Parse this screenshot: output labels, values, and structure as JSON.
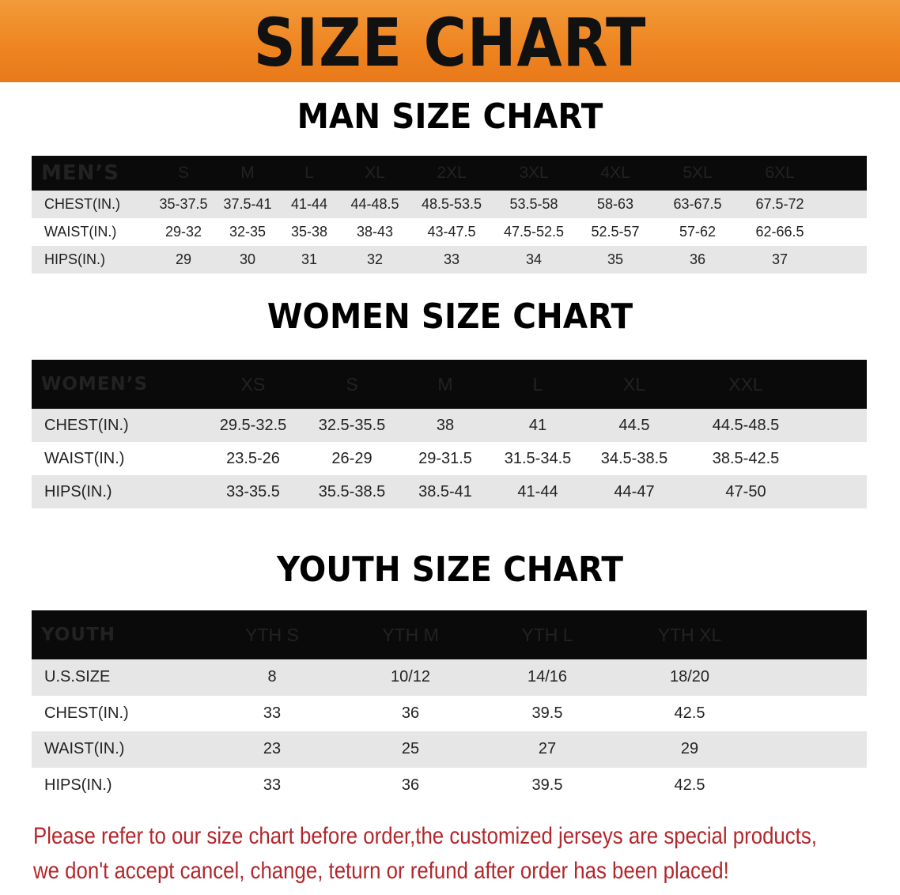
{
  "banner_title": "SIZE CHART",
  "colors": {
    "banner": "#ee8420",
    "header_bg": "#0a0a0a",
    "alt_row": "#e6e6e6",
    "note_text": "#b3262b"
  },
  "men": {
    "title": "MAN SIZE CHART",
    "header": [
      "MEN’S",
      "S",
      "M",
      "L",
      "XL",
      "2XL",
      "3XL",
      "4XL",
      "5XL",
      "6XL"
    ],
    "rows": [
      [
        "CHEST(IN.)",
        "35-37.5",
        "37.5-41",
        "41-44",
        "44-48.5",
        "48.5-53.5",
        "53.5-58",
        "58-63",
        "63-67.5",
        "67.5-72"
      ],
      [
        "WAIST(IN.)",
        "29-32",
        "32-35",
        "35-38",
        "38-43",
        "43-47.5",
        "47.5-52.5",
        "52.5-57",
        "57-62",
        "62-66.5"
      ],
      [
        "HIPS(IN.)",
        "29",
        "30",
        "31",
        "32",
        "33",
        "34",
        "35",
        "36",
        "37"
      ]
    ]
  },
  "women": {
    "title": "WOMEN SIZE CHART",
    "header": [
      "WOMEN’S",
      "XS",
      "S",
      "M",
      "L",
      "XL",
      "XXL"
    ],
    "rows": [
      [
        "CHEST(IN.)",
        "29.5-32.5",
        "32.5-35.5",
        "38",
        "41",
        "44.5",
        "44.5-48.5"
      ],
      [
        "WAIST(IN.)",
        "23.5-26",
        "26-29",
        "29-31.5",
        "31.5-34.5",
        "34.5-38.5",
        "38.5-42.5"
      ],
      [
        "HIPS(IN.)",
        "33-35.5",
        "35.5-38.5",
        "38.5-41",
        "41-44",
        "44-47",
        "47-50"
      ]
    ]
  },
  "youth": {
    "title": "YOUTH SIZE CHART",
    "header": [
      "YOUTH",
      "YTH S",
      "YTH M",
      "YTH L",
      "YTH XL"
    ],
    "rows": [
      [
        "U.S.SIZE",
        "8",
        "10/12",
        "14/16",
        "18/20"
      ],
      [
        "CHEST(IN.)",
        "33",
        "36",
        "39.5",
        "42.5"
      ],
      [
        "WAIST(IN.)",
        "23",
        "25",
        "27",
        "29"
      ],
      [
        "HIPS(IN.)",
        "33",
        "36",
        "39.5",
        "42.5"
      ]
    ]
  },
  "note": {
    "line1": "Please refer to our size chart before order,the customized jerseys are special products,",
    "line2": "we don't accept cancel, change, teturn or refund after order has been placed!"
  }
}
